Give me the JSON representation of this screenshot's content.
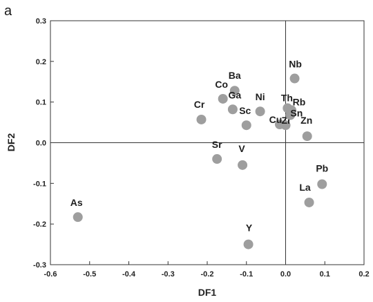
{
  "panel_label": "a",
  "colors": {
    "marker": "#9e9e9e",
    "axis": "#333333",
    "text": "#222222"
  },
  "chart_data": {
    "type": "scatter",
    "xlabel": "DF1",
    "ylabel": "DF2",
    "xlim": [
      -0.6,
      0.2
    ],
    "ylim": [
      -0.3,
      0.3
    ],
    "x_ticks": [
      "-0.6",
      "-0.5",
      "-0.4",
      "-0.3",
      "-0.2",
      "-0.1",
      "0.0",
      "0.1",
      "0.2"
    ],
    "y_ticks": [
      "0.3",
      "0.2",
      "0.1",
      "0.0",
      "-0.1",
      "-0.2",
      "-0.3"
    ],
    "grid": false,
    "zero_lines": true,
    "points": [
      {
        "label": "As",
        "x": -0.53,
        "y": -0.183
      },
      {
        "label": "Cr",
        "x": -0.215,
        "y": 0.057
      },
      {
        "label": "Co",
        "x": -0.16,
        "y": 0.108
      },
      {
        "label": "Ba",
        "x": -0.13,
        "y": 0.128
      },
      {
        "label": "Ga",
        "x": -0.135,
        "y": 0.082
      },
      {
        "label": "Sc",
        "x": -0.1,
        "y": 0.043
      },
      {
        "label": "Ni",
        "x": -0.065,
        "y": 0.077
      },
      {
        "label": "Sr",
        "x": -0.175,
        "y": -0.04
      },
      {
        "label": "V",
        "x": -0.11,
        "y": -0.055
      },
      {
        "label": "Y",
        "x": -0.095,
        "y": -0.25
      },
      {
        "label": "Cu",
        "x": -0.015,
        "y": 0.045
      },
      {
        "label": "Zr",
        "x": 0.0,
        "y": 0.043
      },
      {
        "label": "Th",
        "x": 0.005,
        "y": 0.085
      },
      {
        "label": "Rb",
        "x": 0.015,
        "y": 0.08
      },
      {
        "label": "Sn",
        "x": 0.012,
        "y": 0.068
      },
      {
        "label": "Nb",
        "x": 0.023,
        "y": 0.158
      },
      {
        "label": "Zn",
        "x": 0.055,
        "y": 0.016
      },
      {
        "label": "Pb",
        "x": 0.093,
        "y": -0.102
      },
      {
        "label": "La",
        "x": 0.06,
        "y": -0.147
      }
    ]
  }
}
